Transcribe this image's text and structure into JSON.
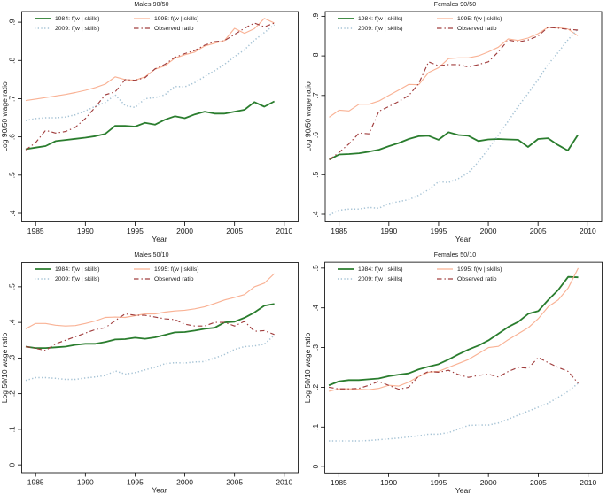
{
  "figure": {
    "background_color": "#ffffff",
    "text_color": "#1a1a1a",
    "axis_color": "#000000"
  },
  "chart_data": [
    {
      "type": "line",
      "title": "Males 90/50",
      "xlabel": "Year",
      "ylabel": "Log 90/50 wage ratio",
      "xlim": [
        1983.6,
        2011.4
      ],
      "ylim": [
        0.378,
        0.928
      ],
      "xticks": [
        1985,
        1990,
        1995,
        2000,
        2005,
        2010
      ],
      "yticks": [
        0.4,
        0.5,
        0.6,
        0.7,
        0.8,
        0.9
      ],
      "ytick_labels": [
        ".4",
        ".5",
        ".6",
        ".7",
        ".8",
        ".9"
      ],
      "grid": false,
      "legend_position": "top-left-inside",
      "x": [
        1984,
        1985,
        1986,
        1987,
        1988,
        1989,
        1990,
        1991,
        1992,
        1993,
        1994,
        1995,
        1996,
        1997,
        1998,
        1999,
        2000,
        2001,
        2002,
        2003,
        2004,
        2005,
        2006,
        2007,
        2008,
        2009
      ],
      "series": [
        {
          "name": "1984-counterfactual",
          "label": "1984: f(w | skills)",
          "color": "#2a7d2e",
          "line_style": "solid-thick",
          "values": [
            0.568,
            0.572,
            0.576,
            0.589,
            0.592,
            0.595,
            0.598,
            0.602,
            0.608,
            0.629,
            0.629,
            0.627,
            0.637,
            0.632,
            0.645,
            0.654,
            0.649,
            0.659,
            0.666,
            0.661,
            0.661,
            0.666,
            0.671,
            0.691,
            0.679,
            0.693
          ]
        },
        {
          "name": "1995-counterfactual",
          "label": "1995: f(w | skills)",
          "color": "#f9b295",
          "line_style": "solid-thin",
          "values": [
            0.695,
            0.699,
            0.703,
            0.707,
            0.711,
            0.716,
            0.722,
            0.729,
            0.738,
            0.757,
            0.75,
            0.748,
            0.757,
            0.777,
            0.786,
            0.806,
            0.815,
            0.822,
            0.838,
            0.845,
            0.852,
            0.884,
            0.871,
            0.883,
            0.91,
            0.898
          ]
        },
        {
          "name": "2009-counterfactual",
          "label": "2009: f(w | skills)",
          "color": "#a6c3d5",
          "line_style": "dotted",
          "values": [
            0.643,
            0.648,
            0.65,
            0.65,
            0.652,
            0.658,
            0.668,
            0.68,
            0.69,
            0.71,
            0.682,
            0.677,
            0.7,
            0.703,
            0.71,
            0.732,
            0.731,
            0.742,
            0.758,
            0.773,
            0.79,
            0.81,
            0.828,
            0.853,
            0.873,
            0.893
          ]
        },
        {
          "name": "observed-ratio",
          "label": "Observed ratio",
          "color": "#a03d3d",
          "line_style": "dashdot",
          "values": [
            0.566,
            0.585,
            0.617,
            0.61,
            0.614,
            0.625,
            0.648,
            0.678,
            0.71,
            0.718,
            0.75,
            0.748,
            0.755,
            0.778,
            0.79,
            0.808,
            0.818,
            0.826,
            0.84,
            0.849,
            0.852,
            0.868,
            0.884,
            0.898,
            0.888,
            0.898
          ]
        }
      ]
    },
    {
      "type": "line",
      "title": "Females 90/50",
      "xlabel": "Year",
      "ylabel": "Log 90/50 wage ratio",
      "xlim": [
        1983.6,
        2011.4
      ],
      "ylim": [
        0.381,
        0.912
      ],
      "xticks": [
        1985,
        1990,
        1995,
        2000,
        2005,
        2010
      ],
      "yticks": [
        0.4,
        0.5,
        0.6,
        0.7,
        0.8,
        0.9
      ],
      "ytick_labels": [
        ".4",
        ".5",
        ".6",
        ".7",
        ".8",
        ".9"
      ],
      "grid": false,
      "legend_position": "top-left-inside",
      "x": [
        1984,
        1985,
        1986,
        1987,
        1988,
        1989,
        1990,
        1991,
        1992,
        1993,
        1994,
        1995,
        1996,
        1997,
        1998,
        1999,
        2000,
        2001,
        2002,
        2003,
        2004,
        2005,
        2006,
        2007,
        2008,
        2009
      ],
      "series": [
        {
          "name": "1984-counterfactual",
          "label": "1984: f(w | skills)",
          "color": "#2a7d2e",
          "line_style": "solid-thick",
          "values": [
            0.538,
            0.551,
            0.552,
            0.554,
            0.558,
            0.563,
            0.572,
            0.58,
            0.59,
            0.597,
            0.598,
            0.588,
            0.607,
            0.6,
            0.598,
            0.585,
            0.589,
            0.59,
            0.589,
            0.588,
            0.57,
            0.59,
            0.592,
            0.575,
            0.561,
            0.6
          ]
        },
        {
          "name": "1995-counterfactual",
          "label": "1995: f(w | skills)",
          "color": "#f9b295",
          "line_style": "solid-thin",
          "values": [
            0.645,
            0.663,
            0.661,
            0.678,
            0.678,
            0.686,
            0.7,
            0.714,
            0.728,
            0.727,
            0.758,
            0.77,
            0.793,
            0.795,
            0.795,
            0.8,
            0.81,
            0.822,
            0.843,
            0.839,
            0.845,
            0.856,
            0.872,
            0.871,
            0.868,
            0.851
          ]
        },
        {
          "name": "2009-counterfactual",
          "label": "2009: f(w | skills)",
          "color": "#a6c3d5",
          "line_style": "dotted",
          "values": [
            0.398,
            0.41,
            0.413,
            0.413,
            0.417,
            0.415,
            0.427,
            0.432,
            0.437,
            0.448,
            0.462,
            0.482,
            0.48,
            0.49,
            0.505,
            0.532,
            0.565,
            0.6,
            0.635,
            0.672,
            0.705,
            0.74,
            0.778,
            0.808,
            0.84,
            0.868
          ]
        },
        {
          "name": "observed-ratio",
          "label": "Observed ratio",
          "color": "#a03d3d",
          "line_style": "dashdot",
          "values": [
            0.538,
            0.556,
            0.578,
            0.605,
            0.603,
            0.66,
            0.672,
            0.685,
            0.7,
            0.73,
            0.785,
            0.775,
            0.778,
            0.778,
            0.772,
            0.778,
            0.785,
            0.81,
            0.84,
            0.835,
            0.84,
            0.85,
            0.872,
            0.87,
            0.867,
            0.865
          ]
        }
      ]
    },
    {
      "type": "line",
      "title": "Males 50/10",
      "xlabel": "Year",
      "ylabel": "Log 50/10 wage ratio",
      "xlim": [
        1983.6,
        2011.4
      ],
      "ylim": [
        -0.022,
        0.568
      ],
      "xticks": [
        1985,
        1990,
        1995,
        2000,
        2005,
        2010
      ],
      "yticks": [
        0,
        0.1,
        0.2,
        0.3,
        0.4,
        0.5
      ],
      "ytick_labels": [
        "0",
        ".1",
        ".2",
        ".3",
        ".4",
        ".5"
      ],
      "grid": false,
      "legend_position": "top-left-inside",
      "x": [
        1984,
        1985,
        1986,
        1987,
        1988,
        1989,
        1990,
        1991,
        1992,
        1993,
        1994,
        1995,
        1996,
        1997,
        1998,
        1999,
        2000,
        2001,
        2002,
        2003,
        2004,
        2005,
        2006,
        2007,
        2008,
        2009
      ],
      "series": [
        {
          "name": "1984-counterfactual",
          "label": "1984: f(w | skills)",
          "color": "#2a7d2e",
          "line_style": "solid-thick",
          "values": [
            0.332,
            0.328,
            0.328,
            0.33,
            0.332,
            0.337,
            0.34,
            0.34,
            0.345,
            0.352,
            0.353,
            0.357,
            0.354,
            0.358,
            0.365,
            0.372,
            0.373,
            0.377,
            0.382,
            0.385,
            0.4,
            0.402,
            0.413,
            0.428,
            0.447,
            0.452
          ]
        },
        {
          "name": "1995-counterfactual",
          "label": "1995: f(w | skills)",
          "color": "#f9b295",
          "line_style": "solid-thin",
          "values": [
            0.382,
            0.397,
            0.397,
            0.392,
            0.39,
            0.391,
            0.397,
            0.404,
            0.414,
            0.415,
            0.414,
            0.419,
            0.424,
            0.424,
            0.429,
            0.432,
            0.434,
            0.438,
            0.444,
            0.453,
            0.463,
            0.47,
            0.478,
            0.5,
            0.51,
            0.537
          ]
        },
        {
          "name": "2009-counterfactual",
          "label": "2009: f(w | skills)",
          "color": "#a6c3d5",
          "line_style": "dotted",
          "values": [
            0.237,
            0.245,
            0.245,
            0.243,
            0.24,
            0.24,
            0.244,
            0.247,
            0.251,
            0.264,
            0.255,
            0.259,
            0.267,
            0.274,
            0.284,
            0.287,
            0.286,
            0.289,
            0.29,
            0.3,
            0.31,
            0.324,
            0.332,
            0.334,
            0.339,
            0.364
          ]
        },
        {
          "name": "observed-ratio",
          "label": "Observed ratio",
          "color": "#a03d3d",
          "line_style": "dashdot",
          "values": [
            0.332,
            0.327,
            0.321,
            0.34,
            0.35,
            0.36,
            0.37,
            0.38,
            0.385,
            0.405,
            0.424,
            0.42,
            0.42,
            0.415,
            0.41,
            0.408,
            0.395,
            0.39,
            0.39,
            0.4,
            0.4,
            0.39,
            0.403,
            0.375,
            0.377,
            0.366
          ]
        }
      ]
    },
    {
      "type": "line",
      "title": "Females 50/10",
      "xlabel": "Year",
      "ylabel": "Log 50/10 wage ratio",
      "xlim": [
        1983.6,
        2011.4
      ],
      "ylim": [
        -0.016,
        0.515
      ],
      "xticks": [
        1985,
        1990,
        1995,
        2000,
        2005,
        2010
      ],
      "yticks": [
        0,
        0.1,
        0.2,
        0.3,
        0.4,
        0.5
      ],
      "ytick_labels": [
        "0",
        ".1",
        ".2",
        ".3",
        ".4",
        ".5"
      ],
      "grid": false,
      "legend_position": "top-left-inside",
      "x": [
        1984,
        1985,
        1986,
        1987,
        1988,
        1989,
        1990,
        1991,
        1992,
        1993,
        1994,
        1995,
        1996,
        1997,
        1998,
        1999,
        2000,
        2001,
        2002,
        2003,
        2004,
        2005,
        2006,
        2007,
        2008,
        2009
      ],
      "series": [
        {
          "name": "1984-counterfactual",
          "label": "1984: f(w | skills)",
          "color": "#2a7d2e",
          "line_style": "solid-thick",
          "values": [
            0.205,
            0.215,
            0.218,
            0.218,
            0.22,
            0.222,
            0.228,
            0.232,
            0.235,
            0.245,
            0.252,
            0.258,
            0.27,
            0.283,
            0.295,
            0.305,
            0.318,
            0.335,
            0.352,
            0.365,
            0.385,
            0.392,
            0.42,
            0.445,
            0.478,
            0.477
          ]
        },
        {
          "name": "1995-counterfactual",
          "label": "1995: f(w | skills)",
          "color": "#f9b295",
          "line_style": "solid-thin",
          "values": [
            0.19,
            0.196,
            0.196,
            0.195,
            0.194,
            0.197,
            0.205,
            0.203,
            0.213,
            0.227,
            0.238,
            0.24,
            0.25,
            0.26,
            0.27,
            0.285,
            0.3,
            0.303,
            0.32,
            0.335,
            0.35,
            0.373,
            0.403,
            0.42,
            0.45,
            0.5
          ]
        },
        {
          "name": "2009-counterfactual",
          "label": "2009: f(w | skills)",
          "color": "#a6c3d5",
          "line_style": "dotted",
          "values": [
            0.065,
            0.065,
            0.065,
            0.065,
            0.066,
            0.068,
            0.07,
            0.072,
            0.075,
            0.078,
            0.082,
            0.082,
            0.086,
            0.095,
            0.104,
            0.105,
            0.105,
            0.11,
            0.12,
            0.13,
            0.14,
            0.15,
            0.16,
            0.175,
            0.19,
            0.21
          ]
        },
        {
          "name": "observed-ratio",
          "label": "Observed ratio",
          "color": "#a03d3d",
          "line_style": "dashdot",
          "values": [
            0.2,
            0.196,
            0.196,
            0.197,
            0.205,
            0.215,
            0.205,
            0.195,
            0.2,
            0.228,
            0.24,
            0.238,
            0.243,
            0.232,
            0.225,
            0.23,
            0.233,
            0.226,
            0.24,
            0.25,
            0.248,
            0.275,
            0.262,
            0.25,
            0.24,
            0.21
          ]
        }
      ]
    }
  ]
}
